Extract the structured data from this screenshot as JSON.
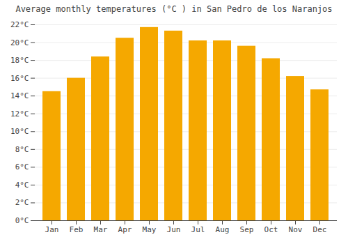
{
  "chart_data": {
    "type": "bar",
    "title": "Average monthly temperatures (°C ) in San Pedro de los Naranjos",
    "categories": [
      "Jan",
      "Feb",
      "Mar",
      "Apr",
      "May",
      "Jun",
      "Jul",
      "Aug",
      "Sep",
      "Oct",
      "Nov",
      "Dec"
    ],
    "values": [
      14.5,
      16.0,
      18.4,
      20.5,
      21.7,
      21.3,
      20.2,
      20.2,
      19.6,
      18.2,
      16.2,
      14.7
    ],
    "color": "#F5A800",
    "ylim": [
      0,
      22
    ],
    "yticks": [
      {
        "value": 0,
        "label": "0°C"
      },
      {
        "value": 2,
        "label": "2°C"
      },
      {
        "value": 4,
        "label": "4°C"
      },
      {
        "value": 6,
        "label": "6°C"
      },
      {
        "value": 8,
        "label": "8°C"
      },
      {
        "value": 10,
        "label": "10°C"
      },
      {
        "value": 12,
        "label": "12°C"
      },
      {
        "value": 14,
        "label": "14°C"
      },
      {
        "value": 16,
        "label": "16°C"
      },
      {
        "value": 18,
        "label": "18°C"
      },
      {
        "value": 20,
        "label": "20°C"
      },
      {
        "value": 22,
        "label": "22°C"
      }
    ],
    "grid": true
  }
}
